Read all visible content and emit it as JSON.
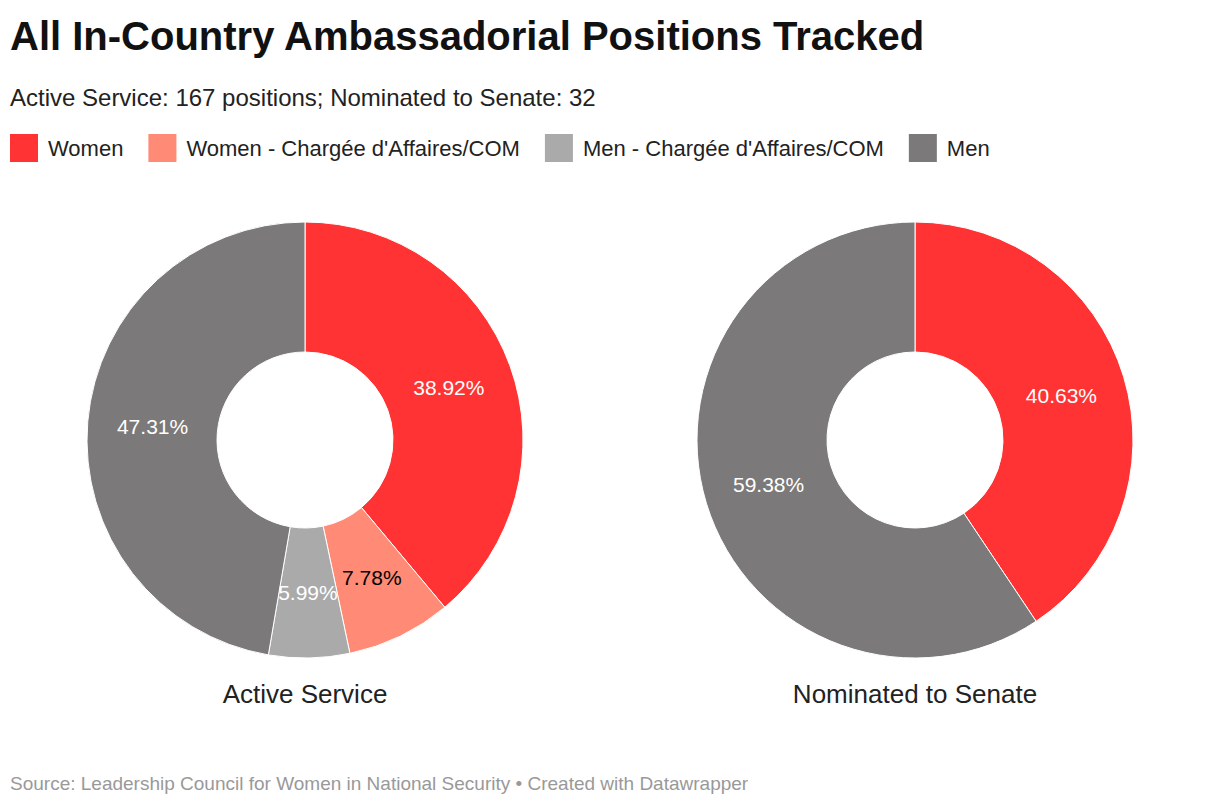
{
  "title": "All In-Country Ambassadorial Positions Tracked",
  "subtitle": "Active Service: 167 positions; Nominated to Senate: 32",
  "source": "Source: Leadership Council for Women in National Security • Created with Datawrapper",
  "chart_data": [
    {
      "type": "pie",
      "title": "Active Service",
      "categories": [
        "Women",
        "Women - Chargée d'Affaires/COM",
        "Men - Chargée d'Affaires/COM",
        "Men"
      ],
      "values": [
        38.92,
        7.78,
        5.99,
        47.31
      ],
      "value_labels": [
        "38.92%",
        "7.78%",
        "5.99%",
        "47.31%"
      ],
      "colors": [
        "#ff3333",
        "#ff8a75",
        "#aaaaaa",
        "#7b7979"
      ],
      "data_labels": true,
      "legend": "top"
    },
    {
      "type": "pie",
      "title": "Nominated to Senate",
      "categories": [
        "Women",
        "Men"
      ],
      "values": [
        40.63,
        59.38
      ],
      "value_labels": [
        "40.63%",
        "59.38%"
      ],
      "colors": [
        "#ff3333",
        "#7b7979"
      ],
      "data_labels": true
    }
  ]
}
